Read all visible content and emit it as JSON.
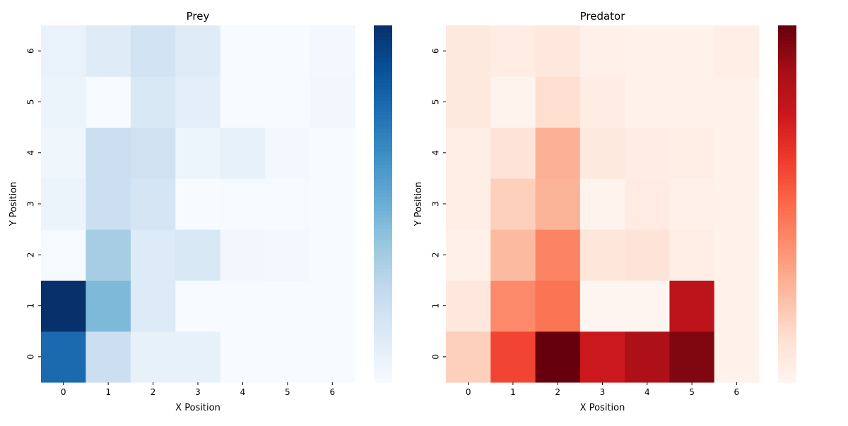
{
  "chart_data": [
    {
      "type": "heatmap",
      "title": "Prey",
      "xlabel": "X Position",
      "ylabel": "Y Position",
      "x_ticks": [
        "0",
        "1",
        "2",
        "3",
        "4",
        "5",
        "6"
      ],
      "y_ticks": [
        "0",
        "1",
        "2",
        "3",
        "4",
        "5",
        "6"
      ],
      "colormap": "Blues",
      "colorbar": true,
      "value_scale": "relative 0-1 (colorbar unlabeled)",
      "values_by_y": [
        [
          0.78,
          0.22,
          0.08,
          0.08,
          0.0,
          0.0,
          0.0
        ],
        [
          1.0,
          0.45,
          0.13,
          0.0,
          0.0,
          0.0,
          0.0
        ],
        [
          0.01,
          0.35,
          0.13,
          0.15,
          0.03,
          0.02,
          0.0
        ],
        [
          0.06,
          0.22,
          0.17,
          0.0,
          0.01,
          0.01,
          0.0
        ],
        [
          0.04,
          0.22,
          0.2,
          0.05,
          0.08,
          0.02,
          0.0
        ],
        [
          0.06,
          0.0,
          0.15,
          0.1,
          0.0,
          0.0,
          0.03
        ],
        [
          0.07,
          0.12,
          0.19,
          0.12,
          0.0,
          0.0,
          0.02
        ]
      ]
    },
    {
      "type": "heatmap",
      "title": "Predator",
      "xlabel": "X Position",
      "ylabel": "Y Position",
      "x_ticks": [
        "0",
        "1",
        "2",
        "3",
        "4",
        "5",
        "6"
      ],
      "y_ticks": [
        "0",
        "1",
        "2",
        "3",
        "4",
        "5",
        "6"
      ],
      "colormap": "Reds",
      "colorbar": true,
      "value_scale": "relative 0-1 (colorbar unlabeled)",
      "values_by_y": [
        [
          0.18,
          0.6,
          1.0,
          0.75,
          0.85,
          0.95,
          0.02
        ],
        [
          0.08,
          0.4,
          0.47,
          0.0,
          0.0,
          0.8,
          0.02
        ],
        [
          0.03,
          0.25,
          0.42,
          0.09,
          0.1,
          0.04,
          0.02
        ],
        [
          0.04,
          0.18,
          0.27,
          0.01,
          0.06,
          0.03,
          0.02
        ],
        [
          0.04,
          0.1,
          0.28,
          0.07,
          0.05,
          0.04,
          0.02
        ],
        [
          0.07,
          0.01,
          0.13,
          0.05,
          0.02,
          0.02,
          0.02
        ],
        [
          0.07,
          0.05,
          0.08,
          0.03,
          0.02,
          0.02,
          0.04
        ]
      ]
    }
  ]
}
